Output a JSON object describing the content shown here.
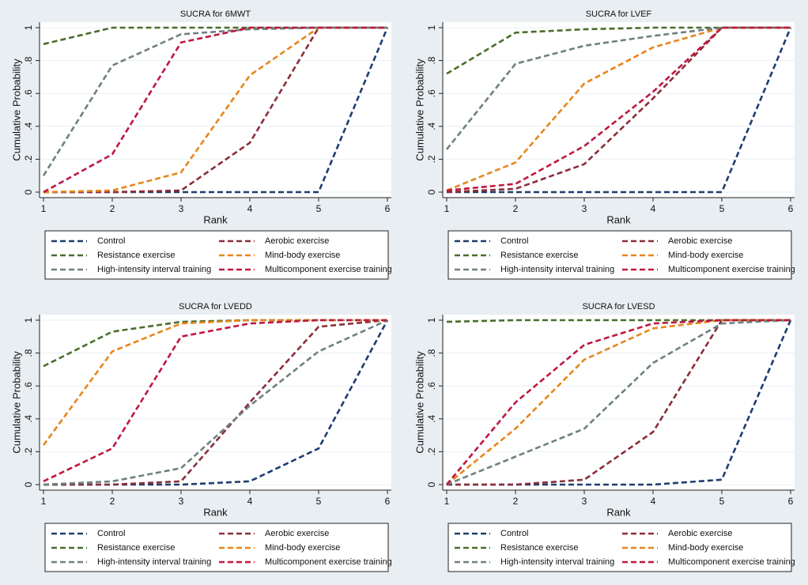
{
  "chart_data": [
    {
      "type": "line",
      "title": "SUCRA for 6MWT",
      "xlabel": "Rank",
      "ylabel": "Cumulative Probability",
      "x": [
        1,
        2,
        3,
        4,
        5,
        6
      ],
      "xlim": [
        1,
        6
      ],
      "xticks": [
        1,
        2,
        3,
        4,
        5,
        6
      ],
      "ylim": [
        0,
        1
      ],
      "yticks": [
        0,
        {
          "value": 0.2,
          "label": ".2"
        },
        {
          "value": 0.4,
          "label": ".4"
        },
        {
          "value": 0.6,
          "label": ".6"
        },
        {
          "value": 0.8,
          "label": ".8"
        },
        1
      ],
      "grid": true,
      "legend": "bottom",
      "series": [
        {
          "name": "Control",
          "color": "#1f3d6e",
          "values": [
            0,
            0,
            0,
            0,
            0,
            1
          ]
        },
        {
          "name": "Aerobic exercise",
          "color": "#8b2e3a",
          "values": [
            0,
            0,
            0.01,
            0.3,
            1,
            1
          ]
        },
        {
          "name": "Resistance exercise",
          "color": "#4a6e2a",
          "values": [
            0.9,
            1,
            1,
            1,
            1,
            1
          ]
        },
        {
          "name": "Mind-body exercise",
          "color": "#e8861a",
          "values": [
            0,
            0.01,
            0.12,
            0.71,
            1,
            1
          ]
        },
        {
          "name": "High-intensity interval training",
          "color": "#6e8080",
          "values": [
            0.1,
            0.77,
            0.96,
            0.99,
            1,
            1
          ]
        },
        {
          "name": "Multicomponent exercise training",
          "color": "#c0173f",
          "values": [
            0,
            0.23,
            0.91,
            1,
            1,
            1
          ]
        }
      ]
    },
    {
      "type": "line",
      "title": "SUCRA for LVEF",
      "xlabel": "Rank",
      "ylabel": "Cumulative Probability",
      "x": [
        1,
        2,
        3,
        4,
        5,
        6
      ],
      "xlim": [
        1,
        6
      ],
      "xticks": [
        1,
        2,
        3,
        4,
        5,
        6
      ],
      "ylim": [
        0,
        1
      ],
      "yticks": [
        0,
        {
          "value": 0.2,
          "label": ".2"
        },
        {
          "value": 0.4,
          "label": ".4"
        },
        {
          "value": 0.6,
          "label": ".6"
        },
        {
          "value": 0.8,
          "label": ".8"
        },
        1
      ],
      "grid": true,
      "legend": "bottom",
      "series": [
        {
          "name": "Control",
          "color": "#1f3d6e",
          "values": [
            0,
            0,
            0,
            0,
            0,
            1
          ]
        },
        {
          "name": "Aerobic exercise",
          "color": "#8b2e3a",
          "values": [
            0,
            0.02,
            0.17,
            0.57,
            1,
            1
          ]
        },
        {
          "name": "Resistance exercise",
          "color": "#4a6e2a",
          "values": [
            0.72,
            0.97,
            0.99,
            1,
            1,
            1
          ]
        },
        {
          "name": "Mind-body exercise",
          "color": "#e8861a",
          "values": [
            0.01,
            0.18,
            0.66,
            0.88,
            1,
            1
          ]
        },
        {
          "name": "High-intensity interval training",
          "color": "#6e8080",
          "values": [
            0.26,
            0.78,
            0.89,
            0.95,
            1,
            1
          ]
        },
        {
          "name": "Multicomponent exercise training",
          "color": "#c0173f",
          "values": [
            0.01,
            0.05,
            0.28,
            0.61,
            1,
            1
          ]
        }
      ]
    },
    {
      "type": "line",
      "title": "SUCRA for LVEDD",
      "xlabel": "Rank",
      "ylabel": "Cumulative Probability",
      "x": [
        1,
        2,
        3,
        4,
        5,
        6
      ],
      "xlim": [
        1,
        6
      ],
      "xticks": [
        1,
        2,
        3,
        4,
        5,
        6
      ],
      "ylim": [
        0,
        1
      ],
      "yticks": [
        0,
        {
          "value": 0.2,
          "label": ".2"
        },
        {
          "value": 0.4,
          "label": ".4"
        },
        {
          "value": 0.6,
          "label": ".6"
        },
        {
          "value": 0.8,
          "label": ".8"
        },
        1
      ],
      "grid": true,
      "legend": "bottom",
      "series": [
        {
          "name": "Control",
          "color": "#1f3d6e",
          "values": [
            0,
            0,
            0,
            0.02,
            0.22,
            1
          ]
        },
        {
          "name": "Aerobic exercise",
          "color": "#8b2e3a",
          "values": [
            0,
            0,
            0.02,
            0.5,
            0.96,
            1
          ]
        },
        {
          "name": "Resistance exercise",
          "color": "#4a6e2a",
          "values": [
            0.72,
            0.93,
            0.99,
            1,
            1,
            1
          ]
        },
        {
          "name": "Mind-body exercise",
          "color": "#e8861a",
          "values": [
            0.24,
            0.81,
            0.98,
            1,
            1,
            1
          ]
        },
        {
          "name": "High-intensity interval training",
          "color": "#6e8080",
          "values": [
            0,
            0.02,
            0.1,
            0.48,
            0.81,
            1
          ]
        },
        {
          "name": "Multicomponent exercise training",
          "color": "#c0173f",
          "values": [
            0.02,
            0.22,
            0.9,
            0.98,
            1,
            1
          ]
        }
      ]
    },
    {
      "type": "line",
      "title": "SUCRA for LVESD",
      "xlabel": "Rank",
      "ylabel": "Cumulative Probability",
      "x": [
        1,
        2,
        3,
        4,
        5,
        6
      ],
      "xlim": [
        1,
        6
      ],
      "xticks": [
        1,
        2,
        3,
        4,
        5,
        6
      ],
      "ylim": [
        0,
        1
      ],
      "yticks": [
        0,
        {
          "value": 0.2,
          "label": ".2"
        },
        {
          "value": 0.4,
          "label": ".4"
        },
        {
          "value": 0.6,
          "label": ".6"
        },
        {
          "value": 0.8,
          "label": ".8"
        },
        1
      ],
      "grid": true,
      "legend": "bottom",
      "series": [
        {
          "name": "Control",
          "color": "#1f3d6e",
          "values": [
            0,
            0,
            0,
            0,
            0.03,
            1
          ]
        },
        {
          "name": "Aerobic exercise",
          "color": "#8b2e3a",
          "values": [
            0,
            0,
            0.03,
            0.32,
            1,
            1
          ]
        },
        {
          "name": "Resistance exercise",
          "color": "#4a6e2a",
          "values": [
            0.99,
            1,
            1,
            1,
            1,
            1
          ]
        },
        {
          "name": "Mind-body exercise",
          "color": "#e8861a",
          "values": [
            0,
            0.34,
            0.76,
            0.95,
            1,
            1
          ]
        },
        {
          "name": "High-intensity interval training",
          "color": "#6e8080",
          "values": [
            0,
            0.17,
            0.34,
            0.74,
            0.98,
            1
          ]
        },
        {
          "name": "Multicomponent exercise training",
          "color": "#c0173f",
          "values": [
            0,
            0.5,
            0.85,
            0.98,
            1,
            1
          ]
        }
      ]
    }
  ]
}
